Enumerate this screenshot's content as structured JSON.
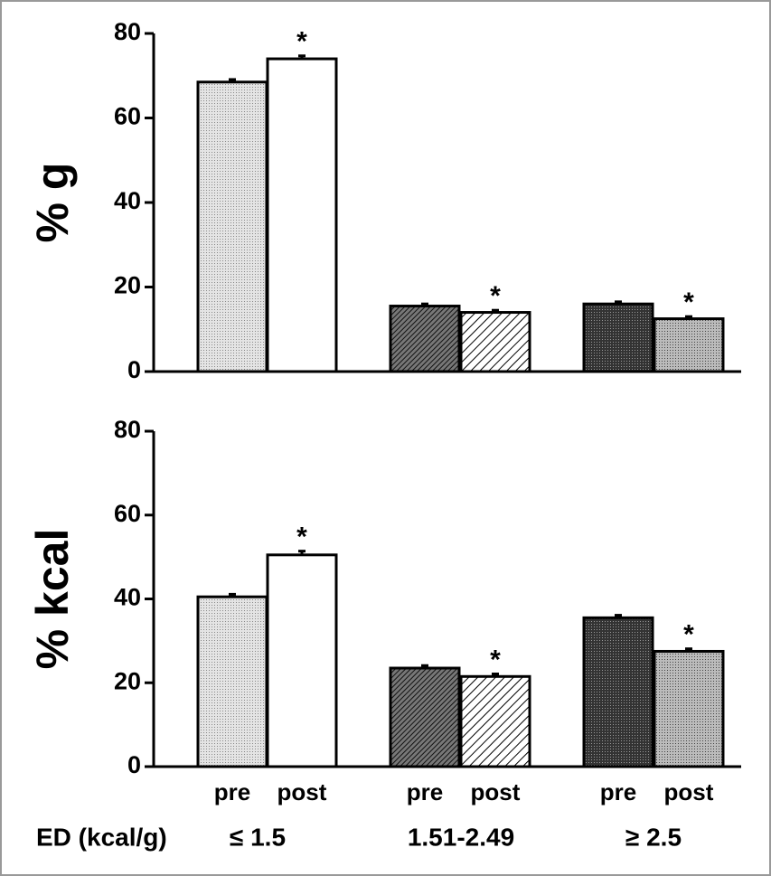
{
  "chart_data": [
    {
      "type": "bar",
      "y_label": "% g",
      "values": [
        68.5,
        74,
        15.5,
        14,
        16,
        12.5
      ],
      "errors": [
        0.6,
        0.7,
        0.5,
        0.5,
        0.5,
        0.5
      ],
      "significant": [
        false,
        true,
        false,
        true,
        false,
        true
      ],
      "significance_label": "*",
      "patterns": [
        "dots-light",
        "white",
        "hatch-dense",
        "hatch",
        "crosshatch-dark",
        "dots"
      ],
      "ylim": [
        0,
        80
      ],
      "yticks": [
        0,
        20,
        40,
        60,
        80
      ]
    },
    {
      "type": "bar",
      "y_label": "% kcal",
      "categories": [
        "pre",
        "post",
        "pre",
        "post",
        "pre",
        "post"
      ],
      "groups": [
        "≤ 1.5",
        "1.51-2.49",
        "≥ 2.5"
      ],
      "x_label": "ED (kcal/g)",
      "values": [
        40.5,
        50.5,
        23.5,
        21.5,
        35.5,
        27.5
      ],
      "errors": [
        0.6,
        0.9,
        0.6,
        0.6,
        0.6,
        0.6
      ],
      "significant": [
        false,
        true,
        false,
        true,
        false,
        true
      ],
      "significance_label": "*",
      "patterns": [
        "dots-light",
        "white",
        "hatch-dense",
        "hatch",
        "crosshatch-dark",
        "dots"
      ],
      "ylim": [
        0,
        80
      ],
      "yticks": [
        0,
        20,
        40,
        60,
        80
      ]
    }
  ]
}
